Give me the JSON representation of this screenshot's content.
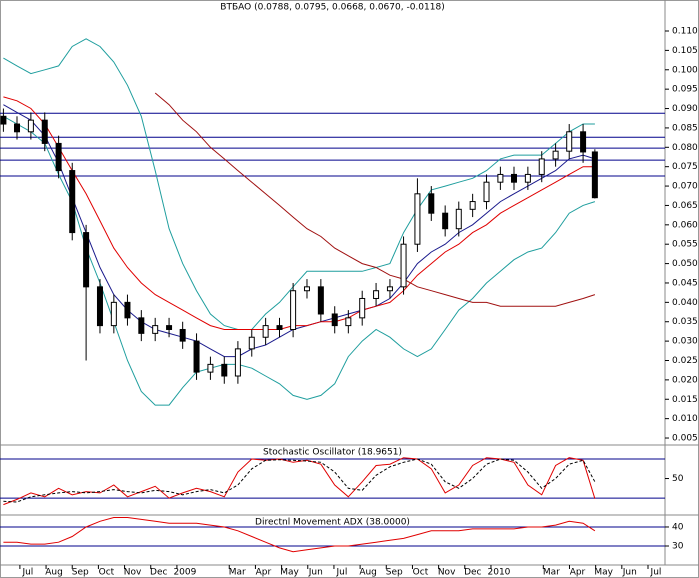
{
  "chart_data": [
    {
      "type": "candlestick",
      "title": "BTБAO (0.0788, 0.0795, 0.0668, 0.0670, -0.0118)",
      "x": [
        -0.63,
        -0.11,
        0.42,
        0.95,
        1.48,
        2.0,
        2.53,
        3.06,
        3.59,
        4.11,
        4.64,
        5.17,
        5.7,
        6.22,
        6.75,
        7.28,
        7.81,
        8.33,
        8.86,
        9.39,
        9.92,
        10.44,
        10.97,
        11.5,
        12.03,
        12.55,
        13.08,
        13.61,
        14.14,
        14.66,
        15.19,
        15.72,
        16.25,
        16.77,
        17.3,
        17.83,
        18.36,
        18.88,
        19.41,
        19.94,
        20.47,
        20.99,
        21.52,
        21.97
      ],
      "open": [
        0.088,
        0.086,
        0.084,
        0.087,
        0.081,
        0.074,
        0.058,
        0.044,
        0.034,
        0.04,
        0.036,
        0.032,
        0.034,
        0.033,
        0.03,
        0.022,
        0.024,
        0.021,
        0.028,
        0.031,
        0.034,
        0.033,
        0.043,
        0.044,
        0.037,
        0.034,
        0.036,
        0.041,
        0.043,
        0.044,
        0.055,
        0.068,
        0.063,
        0.059,
        0.064,
        0.066,
        0.071,
        0.073,
        0.071,
        0.073,
        0.077,
        0.079,
        0.084,
        0.0788
      ],
      "high": [
        0.09,
        0.088,
        0.089,
        0.089,
        0.083,
        0.076,
        0.06,
        0.046,
        0.042,
        0.042,
        0.038,
        0.036,
        0.036,
        0.035,
        0.032,
        0.026,
        0.026,
        0.03,
        0.033,
        0.036,
        0.036,
        0.045,
        0.046,
        0.046,
        0.039,
        0.038,
        0.043,
        0.045,
        0.046,
        0.057,
        0.072,
        0.07,
        0.065,
        0.066,
        0.068,
        0.073,
        0.075,
        0.075,
        0.075,
        0.079,
        0.081,
        0.086,
        0.086,
        0.0795
      ],
      "low": [
        0.084,
        0.082,
        0.082,
        0.079,
        0.072,
        0.056,
        0.025,
        0.032,
        0.032,
        0.034,
        0.03,
        0.03,
        0.031,
        0.028,
        0.02,
        0.02,
        0.019,
        0.019,
        0.026,
        0.029,
        0.031,
        0.031,
        0.041,
        0.035,
        0.032,
        0.032,
        0.034,
        0.039,
        0.041,
        0.042,
        0.053,
        0.061,
        0.057,
        0.057,
        0.062,
        0.064,
        0.069,
        0.069,
        0.069,
        0.071,
        0.075,
        0.077,
        0.076,
        0.0668
      ],
      "close": [
        0.086,
        0.084,
        0.087,
        0.081,
        0.074,
        0.058,
        0.044,
        0.034,
        0.04,
        0.036,
        0.032,
        0.034,
        0.033,
        0.03,
        0.022,
        0.024,
        0.021,
        0.028,
        0.031,
        0.034,
        0.033,
        0.043,
        0.044,
        0.037,
        0.034,
        0.036,
        0.041,
        0.043,
        0.044,
        0.055,
        0.068,
        0.063,
        0.059,
        0.064,
        0.066,
        0.071,
        0.073,
        0.071,
        0.073,
        0.077,
        0.079,
        0.084,
        0.0788,
        0.067
      ],
      "candle_color": "#000000",
      "series": [
        {
          "color": "#1f9e9e",
          "values": [
            0.103,
            0.101,
            0.099,
            0.1,
            0.101,
            0.106,
            0.108,
            0.106,
            0.102,
            0.096,
            0.088,
            0.074,
            0.059,
            0.05,
            0.043,
            0.037,
            0.034,
            0.033,
            0.033,
            0.037,
            0.04,
            0.044,
            0.048,
            0.048,
            0.048,
            0.048,
            0.048,
            0.049,
            0.05,
            0.058,
            0.064,
            0.069,
            0.07,
            0.071,
            0.072,
            0.074,
            0.077,
            0.078,
            0.078,
            0.078,
            0.081,
            0.084,
            0.086,
            0.086
          ]
        },
        {
          "color": "#1f9e9e",
          "values": [
            0.088,
            0.086,
            0.084,
            0.081,
            0.073,
            0.066,
            0.054,
            0.045,
            0.035,
            0.025,
            0.017,
            0.0135,
            0.0135,
            0.018,
            0.022,
            0.023,
            0.024,
            0.024,
            0.023,
            0.021,
            0.019,
            0.016,
            0.015,
            0.016,
            0.019,
            0.026,
            0.03,
            0.033,
            0.031,
            0.028,
            0.026,
            0.028,
            0.033,
            0.038,
            0.041,
            0.045,
            0.048,
            0.051,
            0.053,
            0.054,
            0.058,
            0.063,
            0.065,
            0.066
          ]
        },
        {
          "color": "#1a1a8c",
          "values": [
            0.091,
            0.089,
            0.087,
            0.083,
            0.076,
            0.067,
            0.058,
            0.049,
            0.042,
            0.038,
            0.035,
            0.033,
            0.032,
            0.031,
            0.03,
            0.028,
            0.026,
            0.026,
            0.028,
            0.029,
            0.031,
            0.033,
            0.034,
            0.035,
            0.036,
            0.037,
            0.038,
            0.039,
            0.041,
            0.045,
            0.05,
            0.053,
            0.055,
            0.058,
            0.06,
            0.063,
            0.066,
            0.068,
            0.07,
            0.072,
            0.074,
            0.077,
            0.078,
            0.077
          ]
        },
        {
          "color": "#e00000",
          "values": [
            0.093,
            0.092,
            0.09,
            0.086,
            0.08,
            0.074,
            0.068,
            0.061,
            0.054,
            0.049,
            0.045,
            0.042,
            0.04,
            0.038,
            0.036,
            0.034,
            0.033,
            0.033,
            0.033,
            0.033,
            0.033,
            0.034,
            0.034,
            0.035,
            0.035,
            0.036,
            0.038,
            0.039,
            0.04,
            0.043,
            0.047,
            0.05,
            0.053,
            0.055,
            0.058,
            0.06,
            0.063,
            0.065,
            0.067,
            0.069,
            0.071,
            0.073,
            0.075,
            0.075
          ]
        },
        {
          "color": "#a01010",
          "values": [
            null,
            null,
            null,
            null,
            null,
            null,
            null,
            null,
            null,
            null,
            null,
            0.094,
            0.091,
            0.087,
            0.084,
            0.08,
            0.077,
            0.074,
            0.071,
            0.068,
            0.065,
            0.062,
            0.059,
            0.057,
            0.054,
            0.052,
            0.05,
            0.049,
            0.047,
            0.046,
            0.044,
            0.043,
            0.042,
            0.041,
            0.04,
            0.04,
            0.039,
            0.039,
            0.039,
            0.039,
            0.039,
            0.04,
            0.041,
            0.042
          ]
        }
      ],
      "levels": [
        0.0888,
        0.0826,
        0.0798,
        0.0767,
        0.0726
      ],
      "level_color": "#00008b",
      "xlim": [
        -0.76,
        24.65
      ],
      "ylim": [
        0.0032,
        0.118
      ],
      "yticks": [
        0.005,
        {
          "value": 0.01,
          "label": "0.010"
        },
        0.015,
        {
          "value": 0.02,
          "label": "0.020"
        },
        0.025,
        {
          "value": 0.03,
          "label": "0.030"
        },
        0.035,
        {
          "value": 0.04,
          "label": "0.040"
        },
        0.045,
        {
          "value": 0.05,
          "label": "0.050"
        },
        0.055,
        {
          "value": 0.06,
          "label": "0.060"
        },
        0.065,
        {
          "value": 0.07,
          "label": "0.070"
        },
        0.075,
        {
          "value": 0.08,
          "label": "0.080"
        },
        0.085,
        {
          "value": 0.09,
          "label": "0.090"
        },
        0.095,
        {
          "value": 0.1,
          "label": "0.100"
        },
        0.105,
        {
          "value": 0.11,
          "label": "0.110"
        }
      ]
    },
    {
      "type": "line",
      "title": "Stochastic Oscillator (18.9651)",
      "x": [
        -0.63,
        -0.11,
        0.42,
        0.95,
        1.48,
        2.0,
        2.53,
        3.06,
        3.59,
        4.11,
        4.64,
        5.17,
        5.7,
        6.22,
        6.75,
        7.28,
        7.81,
        8.33,
        8.86,
        9.39,
        9.92,
        10.44,
        10.97,
        11.5,
        12.03,
        12.55,
        13.08,
        13.61,
        14.14,
        14.66,
        15.19,
        15.72,
        16.25,
        16.77,
        17.3,
        17.83,
        18.36,
        18.88,
        19.41,
        19.94,
        20.47,
        20.99,
        21.52,
        21.97
      ],
      "series": [
        {
          "color": "#e00000",
          "dash": false,
          "values": [
            10,
            18,
            28,
            22,
            35,
            25,
            30,
            28,
            40,
            22,
            30,
            38,
            20,
            28,
            35,
            30,
            22,
            60,
            80,
            78,
            80,
            75,
            78,
            72,
            40,
            22,
            45,
            70,
            72,
            82,
            80,
            65,
            28,
            40,
            70,
            82,
            80,
            75,
            40,
            25,
            70,
            82,
            78,
            18.9651
          ]
        },
        {
          "color": "#000000",
          "dash": true,
          "values": [
            15,
            14,
            22,
            25,
            28,
            30,
            28,
            30,
            33,
            30,
            28,
            32,
            30,
            25,
            30,
            33,
            28,
            40,
            65,
            78,
            79,
            78,
            77,
            75,
            60,
            35,
            32,
            55,
            68,
            75,
            80,
            72,
            45,
            35,
            50,
            72,
            80,
            78,
            60,
            35,
            50,
            72,
            78,
            45
          ]
        }
      ],
      "levels": [
        20,
        80
      ],
      "level_color": "#00008b",
      "xlim": [
        -0.76,
        24.65
      ],
      "ylim": [
        -6,
        101.5
      ],
      "yticks": [
        50
      ]
    },
    {
      "type": "line",
      "title": "Directnl Movement ADX (38.0000)",
      "x": [
        -0.63,
        -0.11,
        0.42,
        0.95,
        1.48,
        2.0,
        2.53,
        3.06,
        3.59,
        4.11,
        4.64,
        5.17,
        5.7,
        6.22,
        6.75,
        7.28,
        7.81,
        8.33,
        8.86,
        9.39,
        9.92,
        10.44,
        10.97,
        11.5,
        12.03,
        12.55,
        13.08,
        13.61,
        14.14,
        14.66,
        15.19,
        15.72,
        16.25,
        16.77,
        17.3,
        17.83,
        18.36,
        18.88,
        19.41,
        19.94,
        20.47,
        20.99,
        21.52,
        21.97
      ],
      "series": [
        {
          "color": "#e00000",
          "dash": false,
          "values": [
            32,
            32,
            31,
            31,
            32,
            35,
            40,
            43,
            45,
            45,
            44,
            43,
            42,
            42,
            42,
            41,
            40,
            38,
            35,
            32,
            29,
            27,
            28,
            29,
            30,
            30,
            31,
            32,
            33,
            34,
            36,
            38,
            38,
            38,
            39,
            39,
            39,
            39,
            40,
            40,
            41,
            43,
            42,
            38
          ]
        }
      ],
      "levels": [
        30,
        40
      ],
      "level_color": "#00008b",
      "xlim": [
        -0.76,
        24.65
      ],
      "ylim": [
        20,
        46.3
      ],
      "yticks": [
        30,
        40
      ],
      "xticks": [
        {
          "value": 0,
          "label": "Jul"
        },
        {
          "value": 1,
          "label": "Aug"
        },
        {
          "value": 2,
          "label": "Sep"
        },
        {
          "value": 3,
          "label": "Oct"
        },
        {
          "value": 4,
          "label": "Nov"
        },
        {
          "value": 5,
          "label": "Dec"
        },
        {
          "value": 6,
          "label": "2009"
        },
        {
          "value": 8,
          "label": "Mar"
        },
        {
          "value": 9,
          "label": "Apr"
        },
        {
          "value": 10,
          "label": "May"
        },
        {
          "value": 11,
          "label": "Jun"
        },
        {
          "value": 12,
          "label": "Jul"
        },
        {
          "value": 13,
          "label": "Aug"
        },
        {
          "value": 14,
          "label": "Sep"
        },
        {
          "value": 15,
          "label": "Oct"
        },
        {
          "value": 16,
          "label": "Nov"
        },
        {
          "value": 17,
          "label": "Dec"
        },
        {
          "value": 18,
          "label": "2010"
        },
        {
          "value": 20,
          "label": "Mar"
        },
        {
          "value": 21,
          "label": "Apr"
        },
        {
          "value": 22,
          "label": "May"
        },
        {
          "value": 23,
          "label": "Jun"
        },
        {
          "value": 24,
          "label": "Jul"
        }
      ]
    }
  ]
}
